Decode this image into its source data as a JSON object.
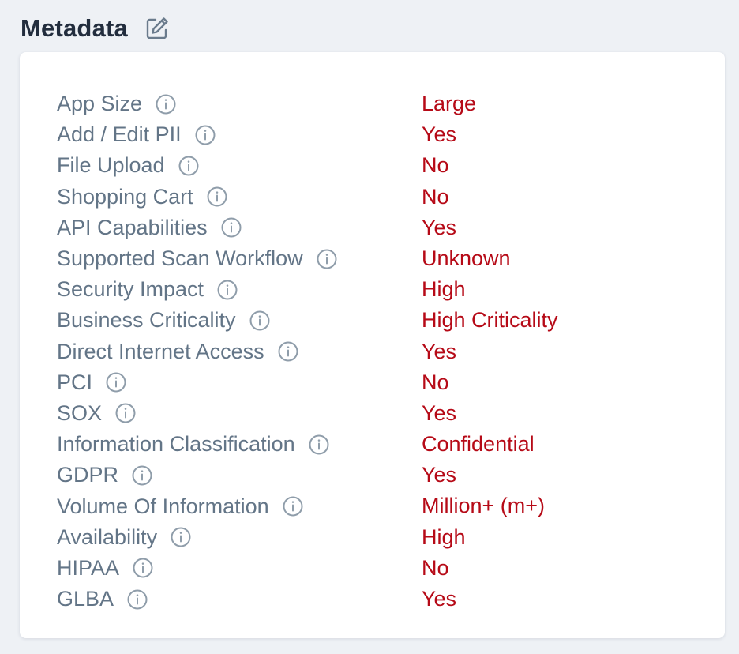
{
  "header": {
    "title": "Metadata",
    "edit_icon": "edit-icon"
  },
  "colors": {
    "label": "#637587",
    "value": "#b60a17",
    "title": "#222d3d",
    "background": "#eef1f5",
    "card": "#ffffff"
  },
  "metadata": {
    "rows": [
      {
        "label": "App Size",
        "value": "Large"
      },
      {
        "label": "Add / Edit PII",
        "value": "Yes"
      },
      {
        "label": "File Upload",
        "value": "No"
      },
      {
        "label": "Shopping Cart",
        "value": "No"
      },
      {
        "label": "API Capabilities",
        "value": "Yes"
      },
      {
        "label": "Supported Scan Workflow",
        "value": "Unknown"
      },
      {
        "label": "Security Impact",
        "value": "High"
      },
      {
        "label": "Business Criticality",
        "value": "High Criticality"
      },
      {
        "label": "Direct Internet Access",
        "value": "Yes"
      },
      {
        "label": "PCI",
        "value": "No"
      },
      {
        "label": "SOX",
        "value": "Yes"
      },
      {
        "label": "Information Classification",
        "value": "Confidential"
      },
      {
        "label": "GDPR",
        "value": "Yes"
      },
      {
        "label": "Volume Of Information",
        "value": "Million+ (m+)"
      },
      {
        "label": "Availability",
        "value": "High"
      },
      {
        "label": "HIPAA",
        "value": "No"
      },
      {
        "label": "GLBA",
        "value": "Yes"
      }
    ],
    "row_icon": "info-icon"
  }
}
